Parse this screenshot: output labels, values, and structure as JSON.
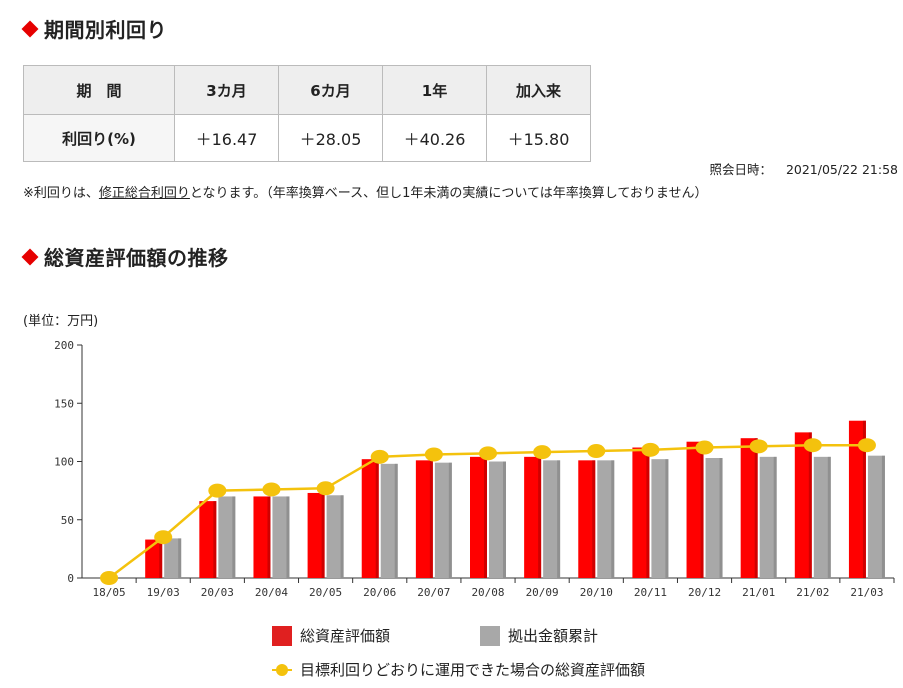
{
  "section1": {
    "title": "期間別利回り"
  },
  "returns_table": {
    "header_label": "期　間",
    "periods": [
      "3カ月",
      "6カ月",
      "1年",
      "加入来"
    ],
    "row_label": "利回り(%)",
    "values": [
      "＋16.47",
      "＋28.05",
      "＋40.26",
      "＋15.80"
    ]
  },
  "query": {
    "label": "照会日時：",
    "datetime": "2021/05/22 21:58"
  },
  "note": {
    "prefix": "※利回りは、",
    "link": "修正総合利回り",
    "suffix": "となります。（年率換算ベース、但し1年未満の実績については年率換算しておりません）"
  },
  "section2": {
    "title": "総資産評価額の推移"
  },
  "unit_label": "(単位：万円)",
  "colors": {
    "accent": "#e60000",
    "bar_red": "#ff0000",
    "bar_gray": "#a8a8a8",
    "line_yellow": "#f4c20d"
  },
  "legend": {
    "total_assets": "総資産評価額",
    "cumulative_contrib": "拠出金額累計",
    "target_line": "目標利回りどおりに運用できた場合の総資産評価額"
  },
  "chart_data": {
    "type": "bar",
    "categories": [
      "18/05",
      "19/03",
      "20/03",
      "20/04",
      "20/05",
      "20/06",
      "20/07",
      "20/08",
      "20/09",
      "20/10",
      "20/11",
      "20/12",
      "21/01",
      "21/02",
      "21/03"
    ],
    "ylim": [
      0,
      200
    ],
    "yticks": [
      0,
      50,
      100,
      150,
      200
    ],
    "grid": false,
    "legend_position": "bottom",
    "series": [
      {
        "name": "総資産評価額",
        "kind": "bar",
        "values": [
          0,
          33,
          66,
          70,
          73,
          102,
          101,
          104,
          104,
          101,
          112,
          117,
          120,
          125,
          135
        ]
      },
      {
        "name": "拠出金額累計",
        "kind": "bar",
        "values": [
          0,
          34,
          70,
          70,
          71,
          98,
          99,
          100,
          101,
          101,
          102,
          103,
          104,
          104,
          105
        ]
      },
      {
        "name": "目標利回りどおりに運用できた場合の総資産評価額",
        "kind": "line",
        "values": [
          0,
          35,
          75,
          76,
          77,
          104,
          106,
          107,
          108,
          109,
          110,
          112,
          113,
          114,
          114
        ]
      }
    ]
  }
}
